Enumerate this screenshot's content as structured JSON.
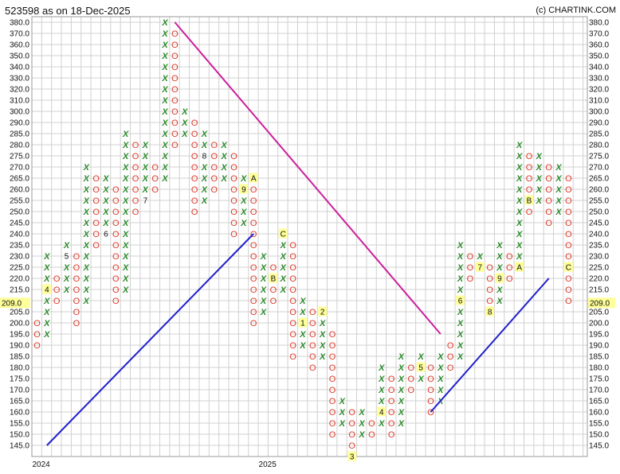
{
  "title": "523598 as on 18-Dec-2025",
  "credit": "(c) CHARTINK.COM",
  "colors": {
    "x_mark": "#2a8a2a",
    "o_mark": "#e03a2a",
    "resistance_line": "#cc1f9c",
    "support_line": "#1f1fcc",
    "highlight": "#ffff99",
    "grid": "#d0d0d0"
  },
  "chart_data": {
    "type": "point-and-figure",
    "box_size": 5,
    "y_ticks": [
      145.0,
      150.0,
      155.0,
      160.0,
      165.0,
      170.0,
      175.0,
      180.0,
      185.0,
      190.0,
      195.0,
      200.0,
      205.0,
      210.0,
      215.0,
      220.0,
      225.0,
      230.0,
      235.0,
      240.0,
      245.0,
      250.0,
      255.0,
      260.0,
      265.0,
      270.0,
      275.0,
      280.0,
      285.0,
      290.0,
      300.0,
      310.0,
      320.0,
      330.0,
      340.0,
      350.0,
      360.0,
      370.0,
      380.0
    ],
    "y_tick_labels": [
      "145.0",
      "150.0",
      "155.0",
      "160.0",
      "165.0",
      "170.0",
      "175.0",
      "180.0",
      "185.0",
      "190.0",
      "195.0",
      "200.0",
      "205.0",
      "210.0",
      "215.0",
      "220.0",
      "225.0",
      "230.0",
      "235.0",
      "240.0",
      "245.0",
      "250.0",
      "255.0",
      "260.0",
      "265.0",
      "270.0",
      "275.0",
      "280.0",
      "285.0",
      "290.0",
      "300.0",
      "310.0",
      "320.0",
      "330.0",
      "340.0",
      "350.0",
      "360.0",
      "370.0",
      "380.0"
    ],
    "current_price": 209.0,
    "current_price_label": "209.0",
    "x_labels": [
      {
        "label": "2024",
        "column": 0
      },
      {
        "label": "2025",
        "column": 23
      }
    ],
    "columns": [
      {
        "type": "O",
        "top": 200,
        "bottom": 190
      },
      {
        "type": "X",
        "bottom": 195,
        "top": 230
      },
      {
        "type": "O",
        "top": 220,
        "bottom": 210
      },
      {
        "type": "X",
        "bottom": 215,
        "top": 235
      },
      {
        "type": "O",
        "top": 230,
        "bottom": 200
      },
      {
        "type": "X",
        "bottom": 210,
        "top": 270
      },
      {
        "type": "O",
        "top": 265,
        "bottom": 235
      },
      {
        "type": "X",
        "bottom": 240,
        "top": 265
      },
      {
        "type": "O",
        "top": 260,
        "bottom": 210
      },
      {
        "type": "X",
        "bottom": 215,
        "top": 285
      },
      {
        "type": "O",
        "top": 280,
        "bottom": 250
      },
      {
        "type": "X",
        "bottom": 255,
        "top": 280
      },
      {
        "type": "O",
        "top": 270,
        "bottom": 260
      },
      {
        "type": "X",
        "bottom": 265,
        "top": 380
      },
      {
        "type": "O",
        "top": 370,
        "bottom": 280
      },
      {
        "type": "X",
        "bottom": 285,
        "top": 300
      },
      {
        "type": "O",
        "top": 290,
        "bottom": 250
      },
      {
        "type": "X",
        "bottom": 255,
        "top": 285
      },
      {
        "type": "O",
        "top": 280,
        "bottom": 260
      },
      {
        "type": "X",
        "bottom": 265,
        "top": 280
      },
      {
        "type": "O",
        "top": 275,
        "bottom": 240
      },
      {
        "type": "X",
        "bottom": 245,
        "top": 265
      },
      {
        "type": "O",
        "top": 260,
        "bottom": 200
      },
      {
        "type": "X",
        "bottom": 205,
        "top": 230
      },
      {
        "type": "O",
        "top": 225,
        "bottom": 210
      },
      {
        "type": "X",
        "bottom": 215,
        "top": 240
      },
      {
        "type": "O",
        "top": 235,
        "bottom": 185
      },
      {
        "type": "X",
        "bottom": 190,
        "top": 210
      },
      {
        "type": "O",
        "top": 205,
        "bottom": 180
      },
      {
        "type": "X",
        "bottom": 185,
        "top": 200
      },
      {
        "type": "O",
        "top": 195,
        "bottom": 150
      },
      {
        "type": "X",
        "bottom": 155,
        "top": 165
      },
      {
        "type": "O",
        "top": 160,
        "bottom": 145
      },
      {
        "type": "X",
        "bottom": 150,
        "top": 160
      },
      {
        "type": "O",
        "top": 155,
        "bottom": 150
      },
      {
        "type": "X",
        "bottom": 155,
        "top": 180
      },
      {
        "type": "O",
        "top": 175,
        "bottom": 150
      },
      {
        "type": "X",
        "bottom": 155,
        "top": 185
      },
      {
        "type": "O",
        "top": 180,
        "bottom": 170
      },
      {
        "type": "X",
        "bottom": 175,
        "top": 185
      },
      {
        "type": "O",
        "top": 180,
        "bottom": 160
      },
      {
        "type": "X",
        "bottom": 165,
        "top": 185
      },
      {
        "type": "O",
        "top": 190,
        "bottom": 180
      },
      {
        "type": "X",
        "bottom": 185,
        "top": 235
      },
      {
        "type": "O",
        "top": 230,
        "bottom": 220
      },
      {
        "type": "X",
        "bottom": 225,
        "top": 230
      },
      {
        "type": "O",
        "top": 225,
        "bottom": 205
      },
      {
        "type": "X",
        "bottom": 210,
        "top": 235
      },
      {
        "type": "O",
        "top": 230,
        "bottom": 220
      },
      {
        "type": "X",
        "bottom": 225,
        "top": 280
      },
      {
        "type": "O",
        "top": 275,
        "bottom": 250
      },
      {
        "type": "X",
        "bottom": 255,
        "top": 275
      },
      {
        "type": "O",
        "top": 270,
        "bottom": 245
      },
      {
        "type": "X",
        "bottom": 250,
        "top": 270
      },
      {
        "type": "O",
        "top": 265,
        "bottom": 209
      }
    ],
    "month_markers": [
      {
        "label": "4",
        "column": 1,
        "value": 215,
        "highlight": true
      },
      {
        "label": "5",
        "column": 3,
        "value": 230,
        "highlight": false
      },
      {
        "label": "6",
        "column": 7,
        "value": 240,
        "highlight": false
      },
      {
        "label": "7",
        "column": 11,
        "value": 255,
        "highlight": false
      },
      {
        "label": "8",
        "column": 17,
        "value": 275,
        "highlight": false
      },
      {
        "label": "9",
        "column": 21,
        "value": 260,
        "highlight": true
      },
      {
        "label": "A",
        "column": 22,
        "value": 265,
        "highlight": true
      },
      {
        "label": "B",
        "column": 24,
        "value": 220,
        "highlight": true
      },
      {
        "label": "C",
        "column": 25,
        "value": 240,
        "highlight": true
      },
      {
        "label": "1",
        "column": 27,
        "value": 200,
        "highlight": true
      },
      {
        "label": "2",
        "column": 29,
        "value": 205,
        "highlight": true
      },
      {
        "label": "3",
        "column": 32,
        "value": 140,
        "highlight": true
      },
      {
        "label": "4",
        "column": 35,
        "value": 160,
        "highlight": true
      },
      {
        "label": "5",
        "column": 39,
        "value": 180,
        "highlight": true
      },
      {
        "label": "6",
        "column": 43,
        "value": 210,
        "highlight": true
      },
      {
        "label": "7",
        "column": 45,
        "value": 225,
        "highlight": true
      },
      {
        "label": "8",
        "column": 46,
        "value": 205,
        "highlight": true
      },
      {
        "label": "9",
        "column": 47,
        "value": 220,
        "highlight": true
      },
      {
        "label": "A",
        "column": 49,
        "value": 225,
        "highlight": true
      },
      {
        "label": "B",
        "column": 50,
        "value": 255,
        "highlight": true
      },
      {
        "label": "C",
        "column": 54,
        "value": 225,
        "highlight": true
      }
    ],
    "trend_lines": [
      {
        "name": "",
        "kind": "resistance",
        "from": {
          "column": 14,
          "value": 380
        },
        "to": {
          "column": 41,
          "value": 195
        }
      },
      {
        "name": "",
        "kind": "support",
        "from": {
          "column": 1,
          "value": 145
        },
        "to": {
          "column": 22,
          "value": 240
        }
      },
      {
        "name": "",
        "kind": "support",
        "from": {
          "column": 40,
          "value": 160
        },
        "to": {
          "column": 52,
          "value": 220
        }
      }
    ]
  }
}
